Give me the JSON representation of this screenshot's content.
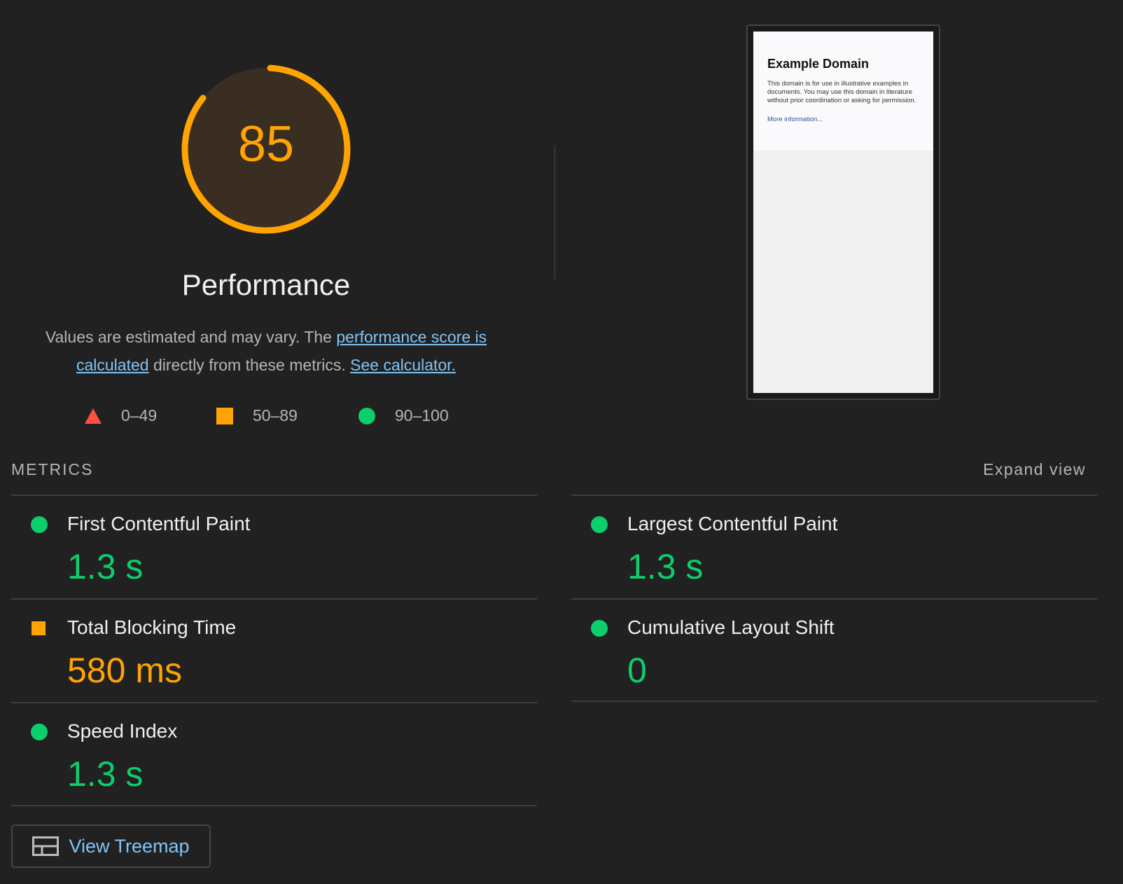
{
  "category": {
    "score": "85",
    "score_fraction": 0.85,
    "title": "Performance",
    "description": {
      "prefix": "Values are estimated and may vary. The ",
      "link1": "performance score is calculated",
      "middle": " directly from these metrics. ",
      "link2": "See calculator."
    }
  },
  "legend": [
    {
      "icon": "triangle-fail-icon",
      "range": "0–49"
    },
    {
      "icon": "square-average-icon",
      "range": "50–89"
    },
    {
      "icon": "circle-pass-icon",
      "range": "90–100"
    }
  ],
  "thumbnail": {
    "heading": "Example Domain",
    "body": "This domain is for use in illustrative examples in documents. You may use this domain in literature without prior coordination or asking for permission.",
    "link": "More information..."
  },
  "metrics": {
    "label": "METRICS",
    "expand_label": "Expand view",
    "items": [
      {
        "name": "First Contentful Paint",
        "value": "1.3 s",
        "rating": "pass"
      },
      {
        "name": "Largest Contentful Paint",
        "value": "1.3 s",
        "rating": "pass"
      },
      {
        "name": "Total Blocking Time",
        "value": "580 ms",
        "rating": "average"
      },
      {
        "name": "Cumulative Layout Shift",
        "value": "0",
        "rating": "pass"
      },
      {
        "name": "Speed Index",
        "value": "1.3 s",
        "rating": "pass"
      }
    ]
  },
  "treemap_button": {
    "label": "View Treemap",
    "icon": "treemap-icon"
  },
  "colors": {
    "pass": "#0cce6b",
    "average": "#ffa400",
    "fail": "#ff4e42",
    "link": "#80c4f6",
    "background": "#212121"
  }
}
